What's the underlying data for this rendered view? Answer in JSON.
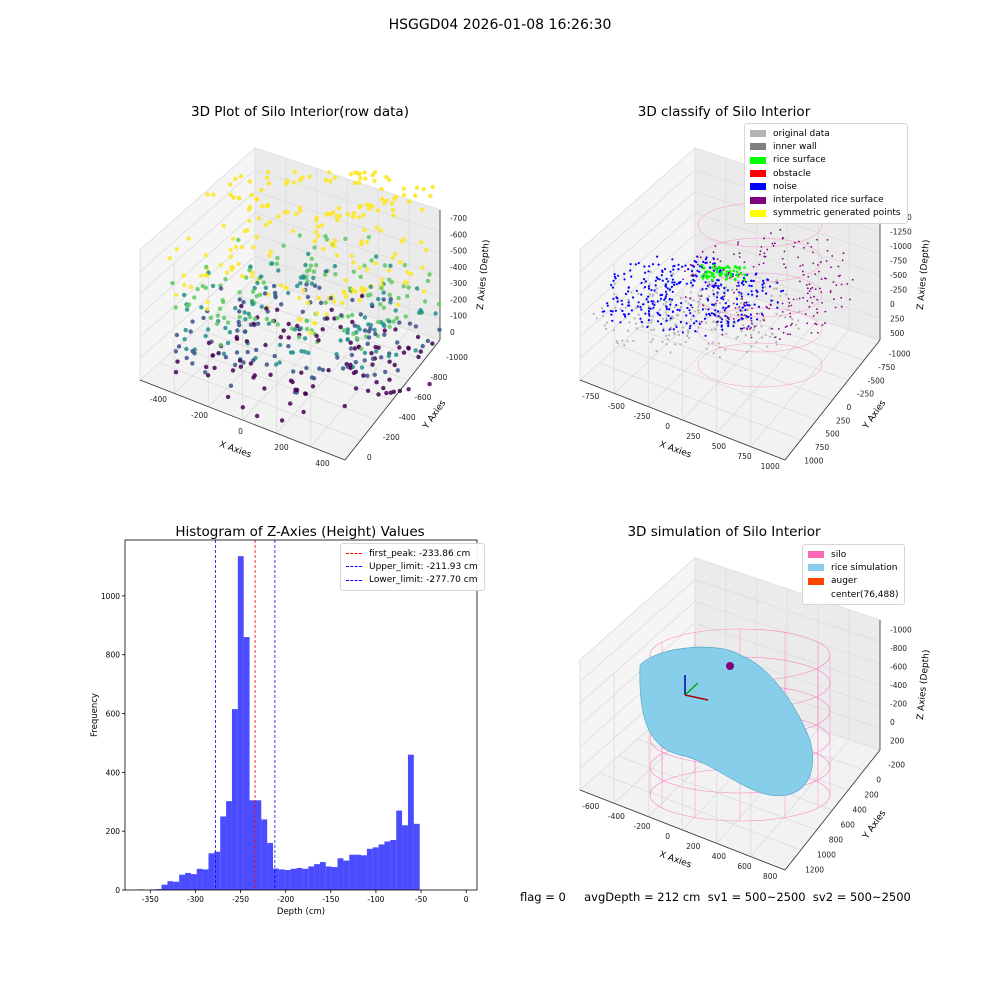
{
  "suptitle": "HSGGD04 2026-01-08 16:26:30",
  "footer": "flag = 0     avgDepth = 212 cm  sv1 = 500~2500  sv2 = 500~2500",
  "chart_data": [
    {
      "type": "scatter3d",
      "title": "3D Plot of Silo Interior(row data)",
      "xlabel": "X Axies",
      "ylabel": "Y Axies",
      "zlabel": "Z Axies (Depth)",
      "xticks": [
        "-400",
        "-200",
        "0",
        "200",
        "400"
      ],
      "yticks": [
        "0",
        "-200",
        "-400",
        "-600",
        "-800",
        "-1000"
      ],
      "zticks": [
        "0",
        "-100",
        "-200",
        "-300",
        "-400",
        "-500",
        "-600",
        "-700"
      ],
      "colormap": [
        "#440154",
        "#3b528b",
        "#21918c",
        "#5ec962",
        "#fde725"
      ]
    },
    {
      "type": "scatter3d",
      "title": "3D classify of Silo Interior",
      "xlabel": "X Axies",
      "ylabel": "Y Axies",
      "zlabel": "Z Axies (Depth)",
      "xticks": [
        "-750",
        "-500",
        "-250",
        "0",
        "250",
        "500",
        "750",
        "1000"
      ],
      "yticks": [
        "1000",
        "750",
        "500",
        "250",
        "0",
        "-250",
        "-500",
        "-750",
        "-1000"
      ],
      "zticks": [
        "500",
        "250",
        "0",
        "-250",
        "-500",
        "-750",
        "-1000",
        "-1250",
        "-1500"
      ],
      "legend": [
        {
          "label": "original data",
          "color": "#b3b3b3"
        },
        {
          "label": "inner wall",
          "color": "#808080"
        },
        {
          "label": "rice surface",
          "color": "#00ff00"
        },
        {
          "label": "obstacle",
          "color": "#ff0000"
        },
        {
          "label": "noise",
          "color": "#0000ff"
        },
        {
          "label": "interpolated rice surface",
          "color": "#800080"
        },
        {
          "label": "symmetric generated points",
          "color": "#ffff00"
        }
      ],
      "legend_position": "top-right"
    },
    {
      "type": "bar",
      "title": "Histogram of Z-Axies (Height) Values",
      "xlabel": "Depth (cm)",
      "ylabel": "Frequency",
      "xlim": [
        -378,
        12
      ],
      "ylim": [
        0,
        1190
      ],
      "xticks": [
        -350,
        -300,
        -250,
        -200,
        -150,
        -100,
        -50,
        0
      ],
      "yticks": [
        0,
        200,
        400,
        600,
        800,
        1000
      ],
      "bin_width": 6.5,
      "bin_start": -370,
      "values": [
        0,
        2,
        0,
        2,
        3,
        18,
        30,
        28,
        52,
        58,
        54,
        72,
        70,
        125,
        130,
        250,
        302,
        615,
        1135,
        860,
        305,
        305,
        240,
        160,
        73,
        70,
        68,
        72,
        75,
        72,
        80,
        88,
        95,
        80,
        78,
        108,
        100,
        120,
        120,
        118,
        140,
        145,
        155,
        165,
        170,
        270,
        220,
        460,
        225
      ],
      "bar_color": "#0000ff",
      "lines": [
        {
          "x": -233.86,
          "color": "#ff0000",
          "label": "first_peak: -233.86 cm"
        },
        {
          "x": -211.93,
          "color": "#0000ff",
          "label": "Upper_limit: -211.93 cm"
        },
        {
          "x": -277.7,
          "color": "#0000ff",
          "label": "Lower_limit: -277.70 cm"
        }
      ],
      "legend_position": "top-right"
    },
    {
      "type": "surface3d",
      "title": "3D simulation of Silo Interior",
      "xlabel": "X Axies",
      "ylabel": "Y Axies",
      "zlabel": "Z Axies (Depth)",
      "xticks": [
        "-600",
        "-400",
        "-200",
        "0",
        "200",
        "400",
        "600",
        "800"
      ],
      "yticks": [
        "1200",
        "1000",
        "800",
        "600",
        "400",
        "200",
        "0",
        "-200"
      ],
      "zticks": [
        "200",
        "0",
        "-200",
        "-400",
        "-600",
        "-800",
        "-1000"
      ],
      "legend": [
        {
          "label": "silo",
          "color": "#ff69b4"
        },
        {
          "label": "rice simulation",
          "color": "#87ceeb"
        },
        {
          "label": "auger",
          "color": "#ff4500"
        },
        {
          "label": "center(76,488)",
          "color": "#ffffff"
        }
      ],
      "legend_position": "top-right"
    }
  ]
}
